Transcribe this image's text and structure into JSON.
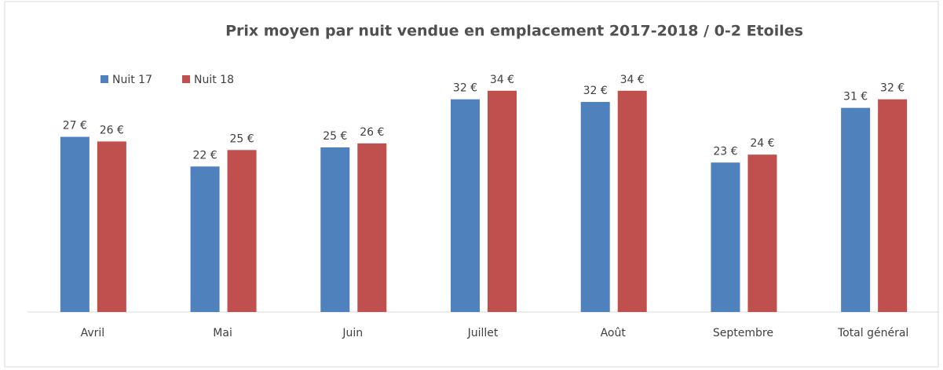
{
  "chart_data": {
    "type": "bar",
    "title": "Prix moyen par nuit vendue en emplacement 2017-2018 / 0-2 Etoiles",
    "categories": [
      "Avril",
      "Mai",
      "Juin",
      "Juillet",
      "Août",
      "Septembre",
      "Total général"
    ],
    "series": [
      {
        "name": "Nuit 17",
        "color": "#4f81bd",
        "values": [
          26.6,
          22.1,
          25.0,
          32.3,
          31.9,
          22.7,
          31.0
        ],
        "value_labels": [
          "27 €",
          "22 €",
          "25 €",
          "32 €",
          "32 €",
          "23 €",
          "31 €"
        ]
      },
      {
        "name": "Nuit 18",
        "color": "#c0504d",
        "values": [
          25.9,
          24.6,
          25.6,
          33.6,
          33.6,
          23.9,
          32.3
        ],
        "value_labels": [
          "26 €",
          "25 €",
          "26 €",
          "34 €",
          "34 €",
          "24 €",
          "32 €"
        ]
      }
    ],
    "ylim": [
      0,
      40
    ],
    "legend": "top-left"
  }
}
